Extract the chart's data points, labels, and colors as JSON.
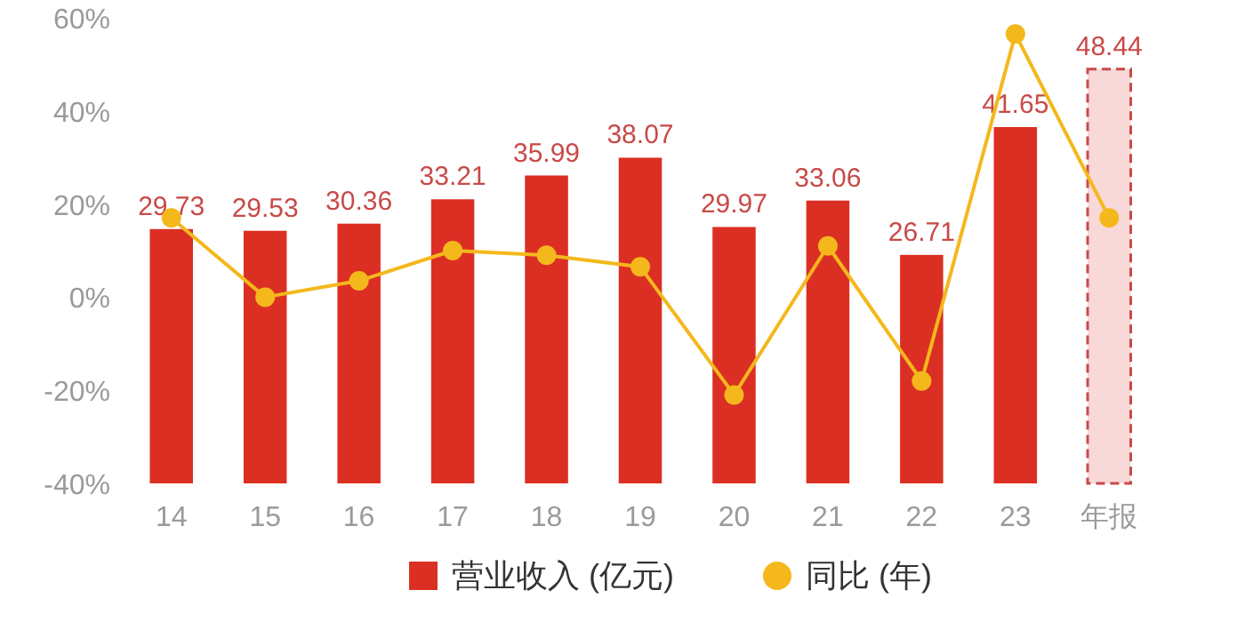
{
  "chart_data": {
    "type": "bar",
    "categories": [
      "14",
      "15",
      "16",
      "17",
      "18",
      "19",
      "20",
      "21",
      "22",
      "23",
      "年报"
    ],
    "ylim": [
      -40,
      60
    ],
    "yticks": [
      {
        "value": -40,
        "label": "-40%"
      },
      {
        "value": -20,
        "label": "-20%"
      },
      {
        "value": 0,
        "label": "0%"
      },
      {
        "value": 20,
        "label": "20%"
      },
      {
        "value": 40,
        "label": "40%"
      },
      {
        "value": 60,
        "label": "60%"
      }
    ],
    "legend": "bottom",
    "grid": false,
    "series": [
      {
        "name": "营业收入 (亿元)",
        "axis": "y2",
        "colors": [
          "#dc2f23",
          "#dc2f23",
          "#dc2f23",
          "#dc2f23",
          "#dc2f23",
          "#dc2f23",
          "#dc2f23",
          "#dc2f23",
          "#dc2f23",
          "#dc2f23",
          "#f9d8d8"
        ],
        "values": [
          29.73,
          29.53,
          30.36,
          33.21,
          35.99,
          38.07,
          29.97,
          33.06,
          26.71,
          41.65,
          48.44
        ],
        "value_labels": [
          "29.73",
          "29.53",
          "30.36",
          "33.21",
          "35.99",
          "38.07",
          "29.97",
          "33.06",
          "26.71",
          "41.65",
          "48.44"
        ]
      },
      {
        "name": "同比 (年)",
        "type": "line",
        "color": "#f4b81c",
        "marker": "circle",
        "values": [
          17,
          0,
          3.5,
          10,
          9,
          6.5,
          -21,
          11,
          -18,
          56.5,
          17
        ]
      }
    ]
  }
}
